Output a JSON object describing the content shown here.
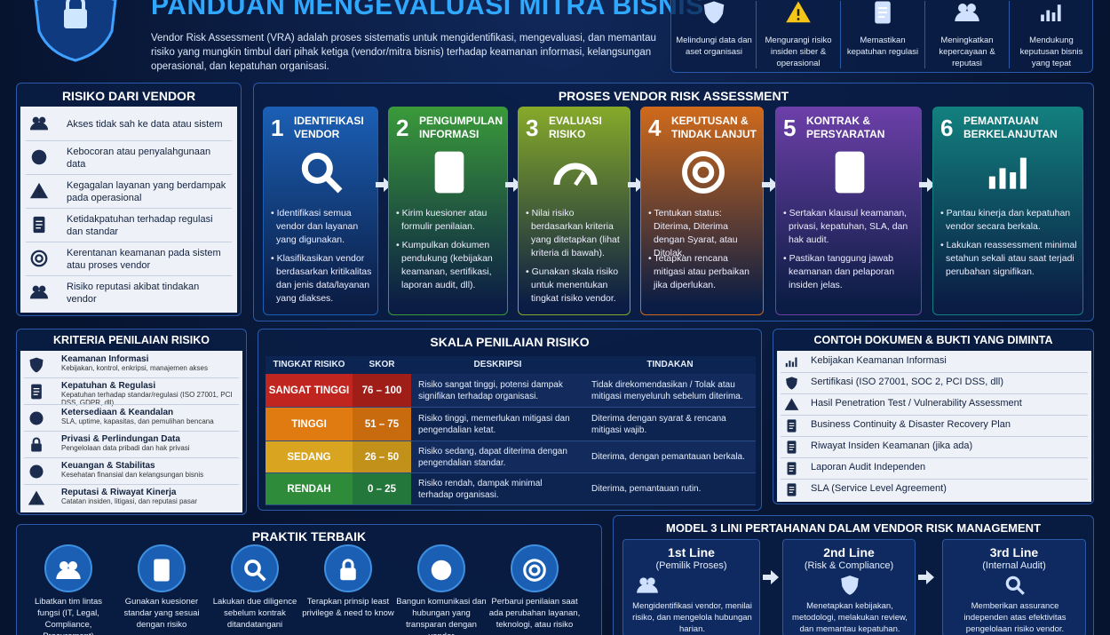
{
  "header": {
    "title": "PANDUAN MENGEVALUASI MITRA BISNIS",
    "description": "Vendor Risk Assessment (VRA) adalah proses sistematis untuk mengidentifikasi, mengevaluasi, dan memantau risiko yang mungkin timbul dari pihak ketiga (vendor/mitra bisnis) terhadap keamanan informasi, kelangsungan operasional, dan kepatuhan organisasi."
  },
  "benefits": [
    "Melindungi data dan aset organisasi",
    "Mengurangi risiko insiden siber & operasional",
    "Memastikan kepatuhan regulasi",
    "Meningkatkan kepercayaan & reputasi",
    "Mendukung keputusan bisnis yang tepat"
  ],
  "risks": {
    "title": "RISIKO DARI VENDOR",
    "items": [
      "Akses tidak sah ke data atau sistem",
      "Kebocoran atau penyalahgunaan data",
      "Kegagalan layanan yang berdampak pada operasional",
      "Ketidakpatuhan terhadap regulasi dan standar",
      "Kerentanan keamanan pada sistem atau proses vendor",
      "Risiko reputasi akibat tindakan vendor"
    ]
  },
  "process": {
    "title": "PROSES VENDOR RISK ASSESSMENT",
    "steps": [
      {
        "number": 1,
        "title": "IDENTIFIKASI VENDOR",
        "bullets": [
          "Identifikasi semua vendor dan layanan yang digunakan.",
          "Klasifikasikan vendor berdasarkan kritikalitas dan jenis data/layanan yang diakses."
        ]
      },
      {
        "number": 2,
        "title": "PENGUMPULAN INFORMASI",
        "bullets": [
          "Kirim kuesioner atau formulir penilaian.",
          "Kumpulkan dokumen pendukung (kebijakan keamanan, sertifikasi, laporan audit, dll)."
        ]
      },
      {
        "number": 3,
        "title": "EVALUASI RISIKO",
        "bullets": [
          "Nilai risiko berdasarkan kriteria yang ditetapkan (lihat kriteria di bawah).",
          "Gunakan skala risiko untuk menentukan tingkat risiko vendor."
        ]
      },
      {
        "number": 4,
        "title": "KEPUTUSAN & TINDAK LANJUT",
        "bullets": [
          "Tentukan status: Diterima, Diterima dengan Syarat, atau Ditolak.",
          "Tetapkan rencana mitigasi atau perbaikan jika diperlukan."
        ]
      },
      {
        "number": 5,
        "title": "KONTRAK & PERSYARATAN",
        "bullets": [
          "Sertakan klausul keamanan, privasi, kepatuhan, SLA, dan hak audit.",
          "Pastikan tanggung jawab keamanan dan pelaporan insiden jelas."
        ]
      },
      {
        "number": 6,
        "title": "PEMANTAUAN BERKELANJUTAN",
        "bullets": [
          "Pantau kinerja dan kepatuhan vendor secara berkala.",
          "Lakukan reassessment minimal setahun sekali atau saat terjadi perubahan signifikan."
        ]
      }
    ]
  },
  "criteria": {
    "title": "KRITERIA PENILAIAN RISIKO",
    "items": [
      {
        "title": "Keamanan Informasi",
        "detail": "Kebijakan, kontrol, enkripsi, manajemen akses"
      },
      {
        "title": "Kepatuhan & Regulasi",
        "detail": "Kepatuhan terhadap standar/regulasi (ISO 27001, PCI DSS, GDPR, dll)"
      },
      {
        "title": "Ketersediaan & Keandalan",
        "detail": "SLA, uptime, kapasitas, dan pemulihan bencana"
      },
      {
        "title": "Privasi & Perlindungan Data",
        "detail": "Pengelolaan data pribadi dan hak privasi"
      },
      {
        "title": "Keuangan & Stabilitas",
        "detail": "Kesehatan finansial dan kelangsungan bisnis"
      },
      {
        "title": "Reputasi & Riwayat Kinerja",
        "detail": "Catatan insiden, litigasi, dan reputasi pasar"
      }
    ]
  },
  "scale": {
    "title": "SKALA PENILAIAN RISIKO",
    "headers": [
      "TINGKAT RISIKO",
      "SKOR",
      "DESKRIPSI",
      "TINDAKAN"
    ],
    "rows": [
      [
        "SANGAT TINGGI",
        "76 – 100",
        "Risiko sangat tinggi, potensi dampak signifikan terhadap organisasi.",
        "Tidak direkomendasikan / Tolak atau mitigasi menyeluruh sebelum diterima."
      ],
      [
        "TINGGI",
        "51 – 75",
        "Risiko tinggi, memerlukan mitigasi dan pengendalian ketat.",
        "Diterima dengan syarat & rencana mitigasi wajib."
      ],
      [
        "SEDANG",
        "26 – 50",
        "Risiko sedang, dapat diterima dengan pengendalian standar.",
        "Diterima, dengan pemantauan berkala."
      ],
      [
        "RENDAH",
        "0 – 25",
        "Risiko rendah, dampak minimal terhadap organisasi.",
        "Diterima, pemantauan rutin."
      ]
    ]
  },
  "documents": {
    "title": "CONTOH DOKUMEN & BUKTI YANG DIMINTA",
    "items": [
      "Kebijakan Keamanan Informasi",
      "Sertifikasi (ISO 27001, SOC 2, PCI DSS, dll)",
      "Hasil Penetration Test / Vulnerability Assessment",
      "Business Continuity & Disaster Recovery Plan",
      "Riwayat Insiden Keamanan (jika ada)",
      "Laporan Audit Independen",
      "SLA (Service Level Agreement)"
    ]
  },
  "practices": {
    "title": "PRAKTIK TERBAIK",
    "items": [
      "Libatkan tim lintas fungsi (IT, Legal, Compliance, Procurement)",
      "Gunakan kuesioner standar yang sesuai dengan risiko",
      "Lakukan due diligence sebelum kontrak ditandatangani",
      "Terapkan prinsip least privilege & need to know",
      "Bangun komunikasi dan hubungan yang transparan dengan vendor",
      "Perbarui penilaian saat ada perubahan layanan, teknologi, atau risiko"
    ]
  },
  "model": {
    "title": "MODEL 3 LINI PERTAHANAN DALAM VENDOR RISK MANAGEMENT",
    "lines": [
      {
        "title": "1st Line",
        "role": "(Pemilik Proses)",
        "description": "Mengidentifikasi vendor, menilai risiko, dan mengelola hubungan harian."
      },
      {
        "title": "2nd Line",
        "role": "(Risk & Compliance)",
        "description": "Menetapkan kebijakan, metodologi, melakukan review, dan memantau kepatuhan."
      },
      {
        "title": "3rd Line",
        "role": "(Internal Audit)",
        "description": "Memberikan assurance independen atas efektivitas pengelolaan risiko vendor."
      }
    ]
  }
}
